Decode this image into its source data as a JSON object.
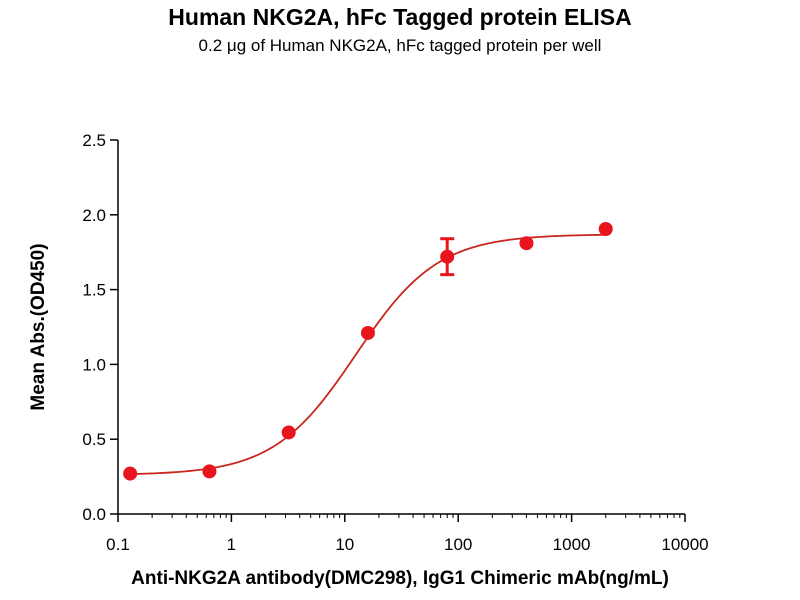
{
  "chart_data": {
    "type": "scatter",
    "title": "Human NKG2A, hFc Tagged protein ELISA",
    "subtitle": "0.2 μg of Human NKG2A, hFc tagged protein per well",
    "xlabel": "Anti-NKG2A antibody(DMC298), IgG1 Chimeric mAb(ng/mL)",
    "ylabel": "Mean Abs.(OD450)",
    "xscale": "log",
    "xlim": [
      0.1,
      10000
    ],
    "ylim": [
      0,
      2.5
    ],
    "x_ticks": [
      0.1,
      1,
      10,
      100,
      1000,
      10000
    ],
    "x_tick_labels": [
      "0.1",
      "1",
      "10",
      "100",
      "1000",
      "10000"
    ],
    "y_ticks": [
      0,
      0.5,
      1,
      1.5,
      2,
      2.5
    ],
    "y_tick_labels": [
      "0.0",
      "0.5",
      "1.0",
      "1.5",
      "2.0",
      "2.5"
    ],
    "grid": false,
    "series": [
      {
        "color": "#e8141e",
        "points": [
          {
            "x": 0.128,
            "y": 0.27,
            "err": 0.0
          },
          {
            "x": 0.64,
            "y": 0.285,
            "err": 0.0
          },
          {
            "x": 3.2,
            "y": 0.545,
            "err": 0.0
          },
          {
            "x": 16,
            "y": 1.21,
            "err": 0.0
          },
          {
            "x": 80,
            "y": 1.72,
            "err": 0.12
          },
          {
            "x": 400,
            "y": 1.81,
            "err": 0.0
          },
          {
            "x": 2000,
            "y": 1.905,
            "err": 0.0
          }
        ],
        "fit": {
          "model": "4PL",
          "bottom": 0.26,
          "top": 1.87,
          "ec50": 12.5,
          "hill": 1.2
        }
      }
    ]
  }
}
